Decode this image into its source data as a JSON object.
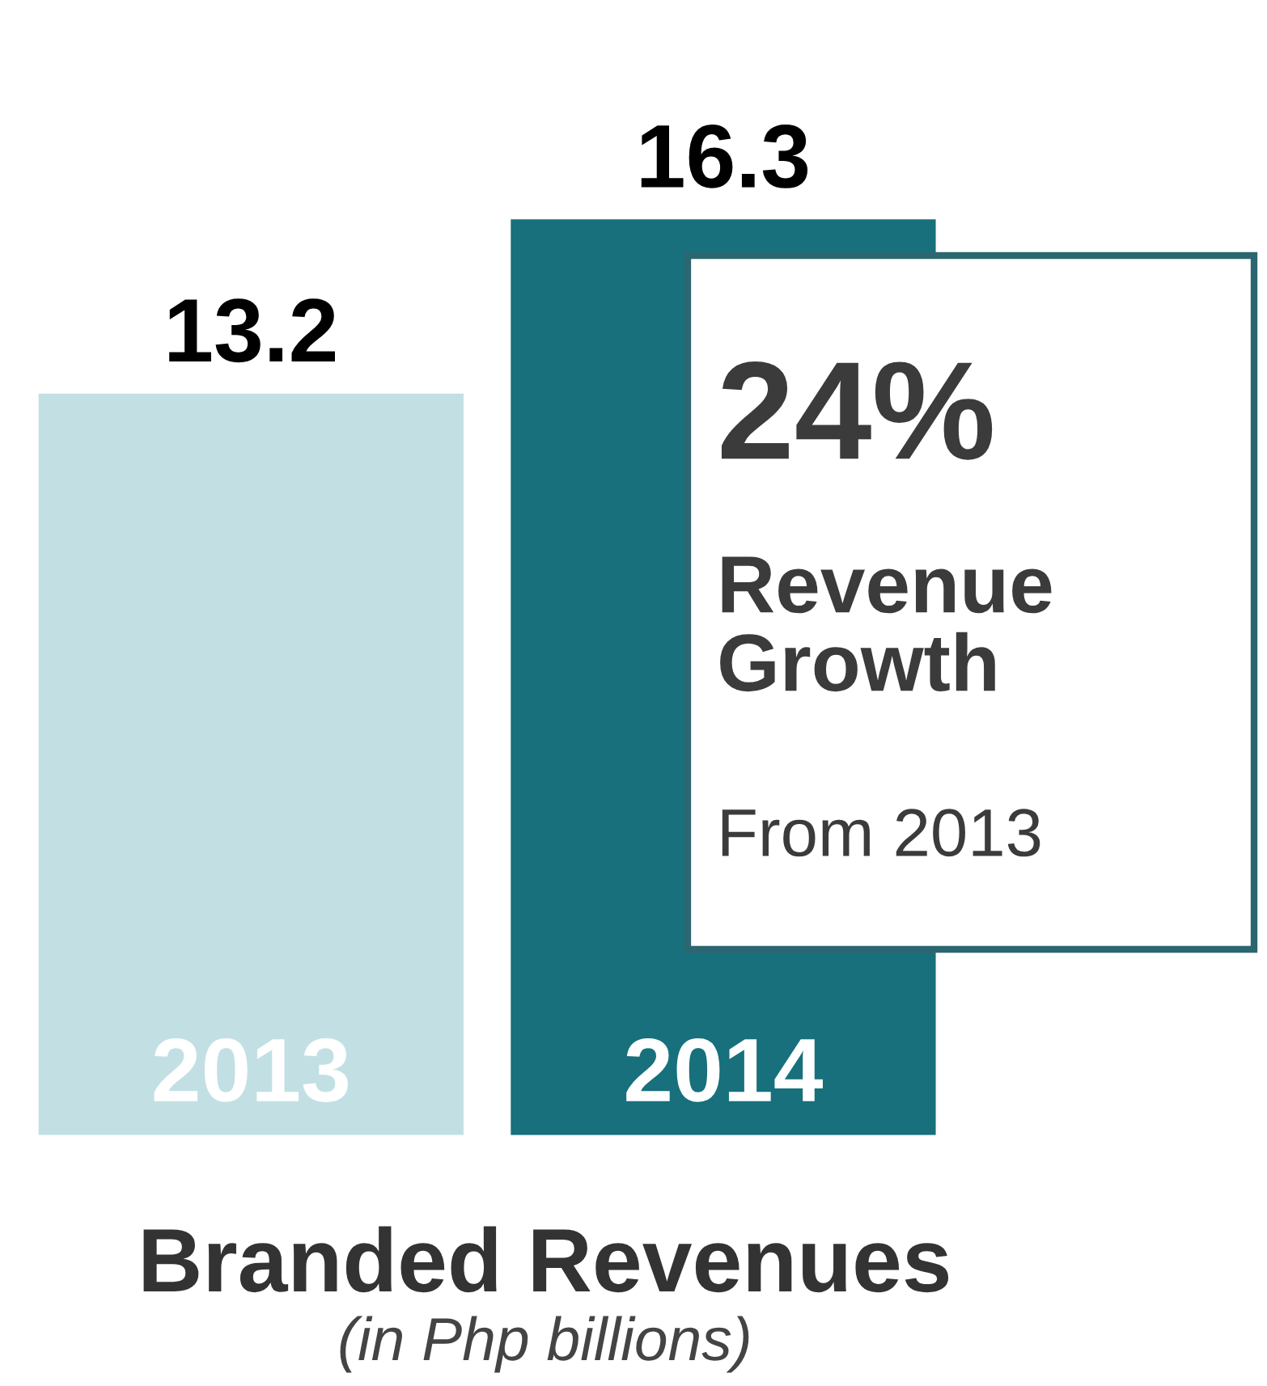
{
  "chart_data": {
    "type": "bar",
    "title": "Branded Revenues",
    "subtitle": "(in Php billions)",
    "categories": [
      "2013",
      "2014"
    ],
    "values": [
      13.2,
      16.3
    ],
    "colors": [
      "#c2e0e3",
      "#17707c"
    ],
    "data_labels": true,
    "annotations": [
      "24%",
      "Revenue Growth",
      "From 2013"
    ]
  }
}
